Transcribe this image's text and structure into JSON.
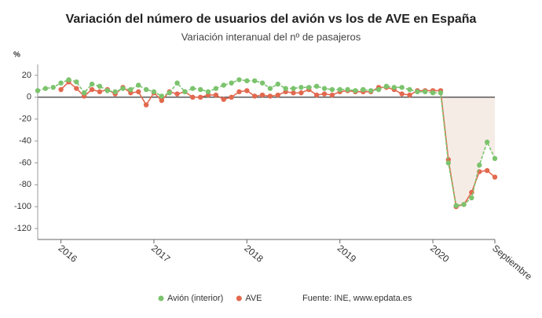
{
  "chart_data": {
    "type": "line",
    "title": "Variación del número de usuarios del avión vs los de AVE en España",
    "subtitle": "Variación interanual del nº de pasajeros",
    "y_label": "%",
    "source": "Fuente: INE, www.epdata.es",
    "categories": [
      null,
      null,
      null,
      "2016",
      null,
      null,
      null,
      null,
      null,
      null,
      null,
      null,
      null,
      null,
      null,
      "2017",
      null,
      null,
      null,
      null,
      null,
      null,
      null,
      null,
      null,
      null,
      null,
      "2018",
      null,
      null,
      null,
      null,
      null,
      null,
      null,
      null,
      null,
      null,
      null,
      "2019",
      null,
      null,
      null,
      null,
      null,
      null,
      null,
      null,
      null,
      null,
      null,
      "2020",
      null,
      null,
      null,
      null,
      null,
      null,
      null,
      "Septiembre"
    ],
    "series": [
      {
        "name": "Avión (interior)",
        "color": "#7cc36e",
        "values": [
          6,
          8,
          9,
          13,
          16,
          14,
          4,
          12,
          10,
          6,
          5,
          8,
          7,
          11,
          7,
          5,
          1,
          4,
          13,
          5,
          8,
          7,
          5,
          8,
          11,
          13,
          16,
          15,
          15,
          13,
          8,
          12,
          8,
          8,
          9,
          9,
          10,
          8,
          7,
          7,
          7,
          6,
          7,
          6,
          7,
          10,
          9,
          9,
          7,
          5,
          5,
          4,
          4,
          -60,
          -99,
          -98,
          -92,
          -62,
          -41,
          -56
        ]
      },
      {
        "name": "AVE",
        "color": "#e2694f",
        "values": [
          null,
          null,
          null,
          7,
          14,
          8,
          1,
          7,
          5,
          7,
          3,
          9,
          4,
          5,
          -7,
          4,
          -3,
          5,
          3,
          5,
          0,
          0,
          2,
          2,
          -2,
          0,
          5,
          6,
          1,
          2,
          1,
          2,
          5,
          4,
          4,
          7,
          2,
          3,
          2,
          5,
          6,
          5,
          5,
          5,
          9,
          9,
          7,
          3,
          2,
          6,
          6,
          6,
          6,
          -57,
          -100,
          -98,
          -87,
          -68,
          -67,
          -73
        ]
      }
    ],
    "ylim": [
      -130,
      30
    ],
    "yticks": [
      20,
      0,
      -20,
      -40,
      -60,
      -80,
      -100,
      -120
    ],
    "grid": false
  }
}
